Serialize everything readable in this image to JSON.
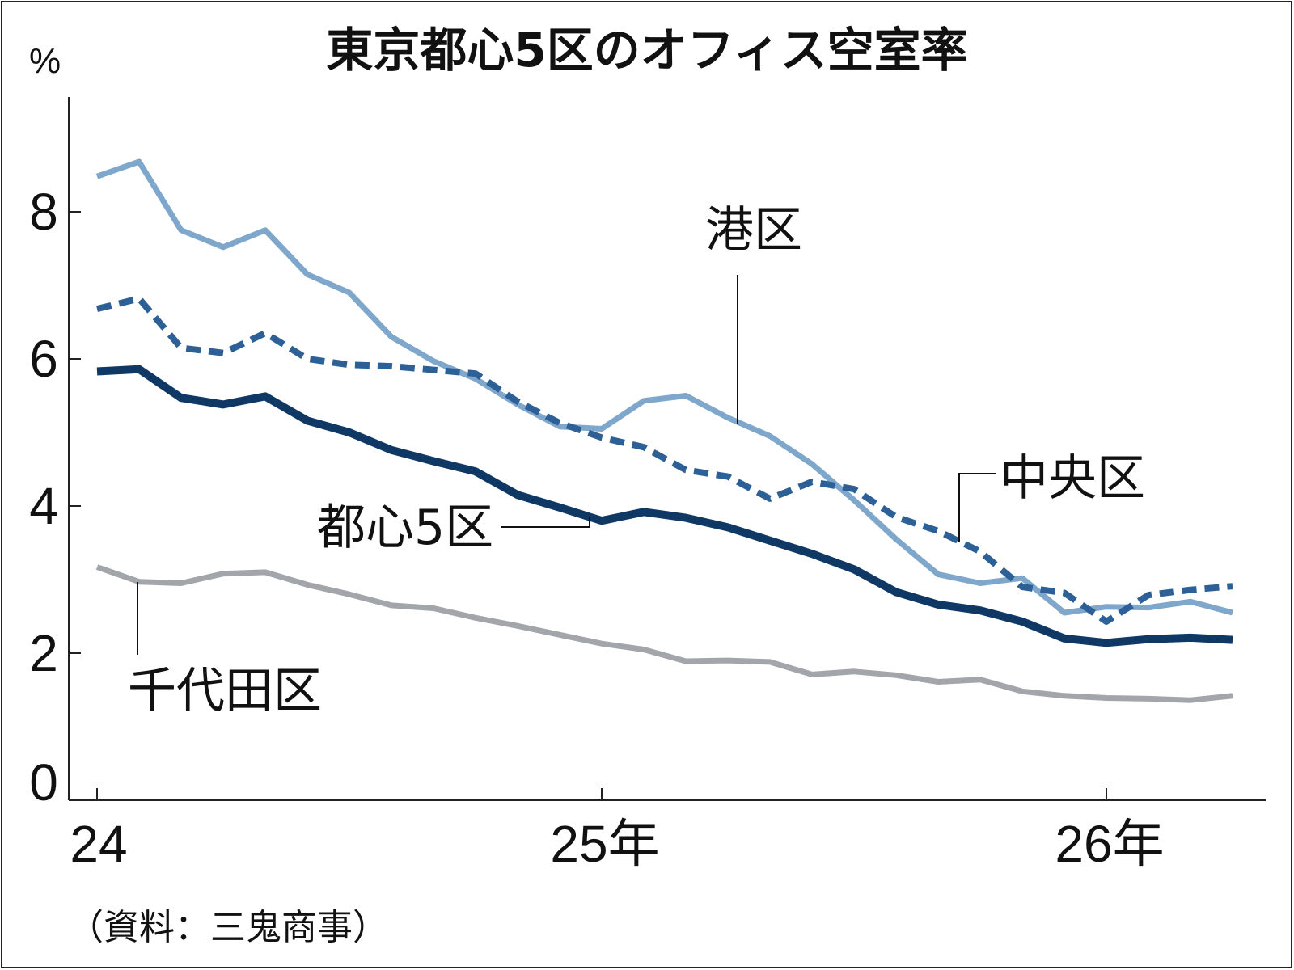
{
  "chart_data": {
    "type": "line",
    "title": "東京都心5区のオフィス空室率",
    "ylabel": "%",
    "ylim": [
      0,
      9.5
    ],
    "yticks": [
      "0",
      "2",
      "4",
      "6",
      "8"
    ],
    "xticks": [
      "24",
      "25年",
      "26年"
    ],
    "source": "（資料：三鬼商事）",
    "series": [
      {
        "name": "港区",
        "color": "#7fa7cc",
        "style": "solid",
        "values": [
          8.48,
          8.68,
          7.75,
          7.52,
          7.75,
          7.15,
          6.9,
          6.3,
          5.97,
          5.73,
          5.38,
          5.08,
          5.05,
          5.43,
          5.5,
          5.2,
          4.95,
          4.57,
          4.08,
          3.55,
          3.07,
          2.95,
          3.02,
          2.55,
          2.63,
          2.62,
          2.7,
          2.55
        ]
      },
      {
        "name": "中央区",
        "color": "#2d6096",
        "style": "dashed",
        "values": [
          6.68,
          6.82,
          6.15,
          6.08,
          6.35,
          6.0,
          5.92,
          5.9,
          5.85,
          5.8,
          5.42,
          5.13,
          4.93,
          4.8,
          4.49,
          4.4,
          4.1,
          4.33,
          4.23,
          3.85,
          3.66,
          3.38,
          2.9,
          2.82,
          2.43,
          2.79,
          2.86,
          2.91
        ]
      },
      {
        "name": "都心5区",
        "color": "#0f3864",
        "style": "solid-thick",
        "values": [
          5.83,
          5.86,
          5.47,
          5.38,
          5.49,
          5.16,
          5.0,
          4.76,
          4.61,
          4.47,
          4.15,
          3.98,
          3.8,
          3.92,
          3.84,
          3.71,
          3.53,
          3.35,
          3.14,
          2.83,
          2.66,
          2.58,
          2.43,
          2.2,
          2.14,
          2.19,
          2.21,
          2.18
        ]
      },
      {
        "name": "千代田区",
        "color": "#a2a6ab",
        "style": "solid",
        "values": [
          3.17,
          2.97,
          2.95,
          3.08,
          3.1,
          2.93,
          2.8,
          2.65,
          2.61,
          2.48,
          2.37,
          2.25,
          2.13,
          2.05,
          1.89,
          1.9,
          1.88,
          1.71,
          1.75,
          1.7,
          1.61,
          1.64,
          1.48,
          1.42,
          1.39,
          1.38,
          1.36,
          1.42
        ]
      }
    ]
  }
}
